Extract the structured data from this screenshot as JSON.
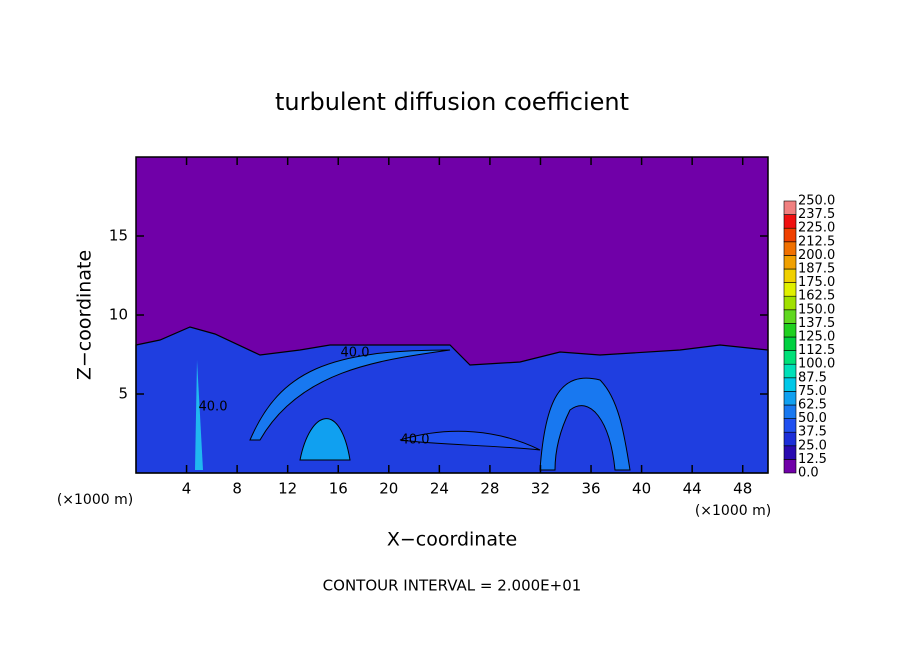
{
  "chart_data": {
    "type": "contour",
    "title": "turbulent diffusion coefficient",
    "x_label": "X−coordinate",
    "y_label": "Z−coordinate",
    "x_unit": "(×1000 m)",
    "y_unit": "(×1000 m)",
    "annotation": "CONTOUR INTERVAL = 2.000E+01",
    "contour_labels": [
      "40.0",
      "40.0",
      "40.0"
    ],
    "xlim": [
      0,
      50
    ],
    "xticks": [
      4,
      8,
      12,
      16,
      20,
      24,
      28,
      32,
      36,
      40,
      44,
      48
    ],
    "ylim": [
      0,
      20
    ],
    "yticks": [
      5,
      10,
      15
    ],
    "colorbar": {
      "levels": [
        {
          "value": 0,
          "label": "0.0"
        },
        {
          "value": 12.5,
          "label": "12.5"
        },
        {
          "value": 25,
          "label": "25.0"
        },
        {
          "value": 37.5,
          "label": "37.5"
        },
        {
          "value": 50,
          "label": "50.0"
        },
        {
          "value": 62.5,
          "label": "62.5"
        },
        {
          "value": 75,
          "label": "75.0"
        },
        {
          "value": 87.5,
          "label": "87.5"
        },
        {
          "value": 100,
          "label": "100.0"
        },
        {
          "value": 112.5,
          "label": "112.5"
        },
        {
          "value": 125,
          "label": "125.0"
        },
        {
          "value": 137.5,
          "label": "137.5"
        },
        {
          "value": 150,
          "label": "150.0"
        },
        {
          "value": 162.5,
          "label": "162.5"
        },
        {
          "value": 175,
          "label": "175.0"
        },
        {
          "value": 187.5,
          "label": "187.5"
        },
        {
          "value": 200,
          "label": "200.0"
        },
        {
          "value": 212.5,
          "label": "212.5"
        },
        {
          "value": 225,
          "label": "225.0"
        },
        {
          "value": 237.5,
          "label": "237.5"
        },
        {
          "value": 250,
          "label": "250.0"
        }
      ],
      "colors": [
        "#7000a8",
        "#2a0ab0",
        "#1c2ed8",
        "#2050f0",
        "#1878f0",
        "#10a0f0",
        "#00c8e8",
        "#00e0b8",
        "#00e078",
        "#00d040",
        "#20d020",
        "#60d820",
        "#a0e000",
        "#e0f000",
        "#f0d000",
        "#f0a000",
        "#f07000",
        "#f04000",
        "#f01010",
        "#f08080"
      ]
    }
  }
}
